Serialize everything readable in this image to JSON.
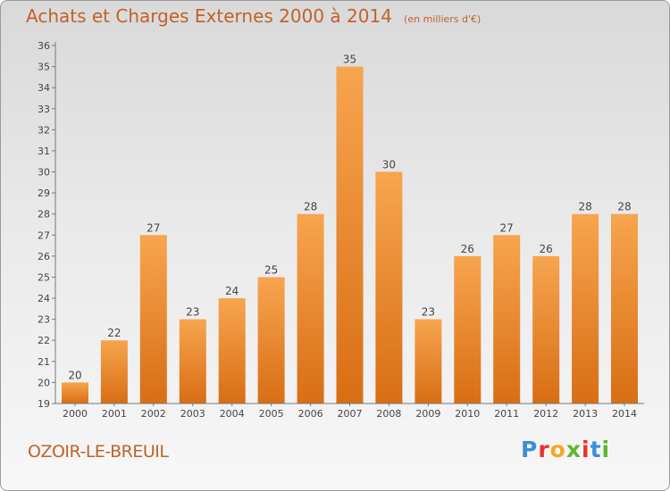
{
  "header": {
    "title": "Achats et Charges Externes 2000 à 2014",
    "unit": "(en milliers d'€)"
  },
  "footer": {
    "commune": "OZOIR-LE-BREUIL",
    "logo_text": "Proxiti"
  },
  "colors": {
    "accent": "#c0622b",
    "bar_top": "#f7a54f",
    "bar_bottom": "#d86e14",
    "logo": [
      "#3a8fd6",
      "#e8332a",
      "#f5a623",
      "#5cb82e",
      "#e8332a",
      "#3a8fd6",
      "#5cb82e"
    ]
  },
  "chart_data": {
    "type": "bar",
    "title": "Achats et Charges Externes 2000 à 2014",
    "subtitle": "(en milliers d'€)",
    "categories": [
      "2000",
      "2001",
      "2002",
      "2003",
      "2004",
      "2005",
      "2006",
      "2007",
      "2008",
      "2009",
      "2010",
      "2011",
      "2012",
      "2013",
      "2014"
    ],
    "values": [
      20,
      22,
      27,
      23,
      24,
      25,
      28,
      35,
      30,
      23,
      26,
      27,
      26,
      28,
      28
    ],
    "ylim": [
      19,
      36
    ],
    "yticks": [
      19,
      20,
      21,
      22,
      23,
      24,
      25,
      26,
      27,
      28,
      29,
      30,
      31,
      32,
      33,
      34,
      35,
      36
    ],
    "grid": false,
    "data_labels": true
  }
}
